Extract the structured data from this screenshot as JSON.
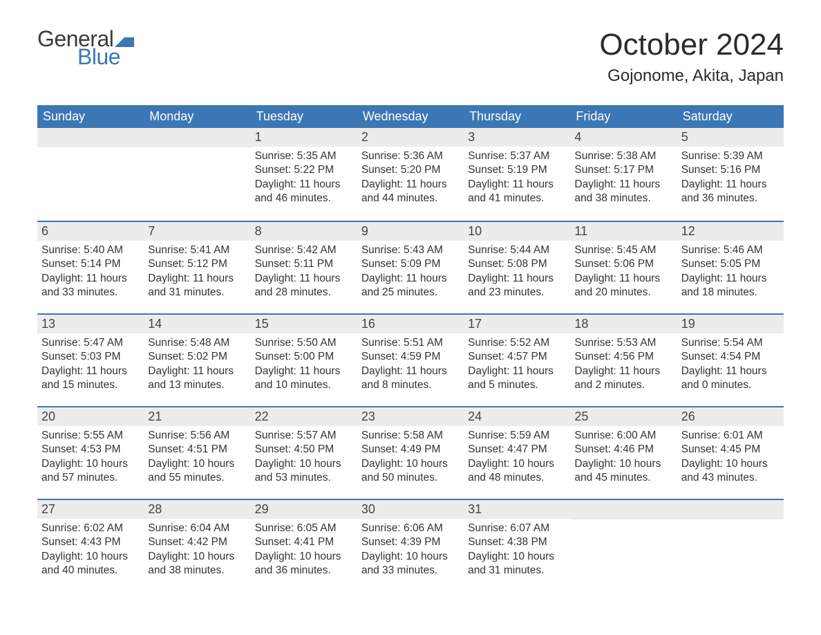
{
  "logo": {
    "text_general": "General",
    "text_blue": "Blue",
    "flag_color": "#3b77b5"
  },
  "header": {
    "month_title": "October 2024",
    "location": "Gojonome, Akita, Japan"
  },
  "styling": {
    "page_bg": "#ffffff",
    "header_bar_bg": "#3b77b5",
    "header_bar_text": "#ffffff",
    "day_num_bg": "#ececec",
    "week_border": "#3b77b5",
    "text_color": "#333333",
    "title_fontsize": 44,
    "location_fontsize": 24,
    "weekday_fontsize": 18,
    "daynum_fontsize": 18,
    "body_fontsize": 15.5
  },
  "calendar": {
    "weekdays": [
      "Sunday",
      "Monday",
      "Tuesday",
      "Wednesday",
      "Thursday",
      "Friday",
      "Saturday"
    ],
    "weeks": [
      [
        null,
        null,
        {
          "n": "1",
          "sr": "Sunrise: 5:35 AM",
          "ss": "Sunset: 5:22 PM",
          "dl": "Daylight: 11 hours and 46 minutes."
        },
        {
          "n": "2",
          "sr": "Sunrise: 5:36 AM",
          "ss": "Sunset: 5:20 PM",
          "dl": "Daylight: 11 hours and 44 minutes."
        },
        {
          "n": "3",
          "sr": "Sunrise: 5:37 AM",
          "ss": "Sunset: 5:19 PM",
          "dl": "Daylight: 11 hours and 41 minutes."
        },
        {
          "n": "4",
          "sr": "Sunrise: 5:38 AM",
          "ss": "Sunset: 5:17 PM",
          "dl": "Daylight: 11 hours and 38 minutes."
        },
        {
          "n": "5",
          "sr": "Sunrise: 5:39 AM",
          "ss": "Sunset: 5:16 PM",
          "dl": "Daylight: 11 hours and 36 minutes."
        }
      ],
      [
        {
          "n": "6",
          "sr": "Sunrise: 5:40 AM",
          "ss": "Sunset: 5:14 PM",
          "dl": "Daylight: 11 hours and 33 minutes."
        },
        {
          "n": "7",
          "sr": "Sunrise: 5:41 AM",
          "ss": "Sunset: 5:12 PM",
          "dl": "Daylight: 11 hours and 31 minutes."
        },
        {
          "n": "8",
          "sr": "Sunrise: 5:42 AM",
          "ss": "Sunset: 5:11 PM",
          "dl": "Daylight: 11 hours and 28 minutes."
        },
        {
          "n": "9",
          "sr": "Sunrise: 5:43 AM",
          "ss": "Sunset: 5:09 PM",
          "dl": "Daylight: 11 hours and 25 minutes."
        },
        {
          "n": "10",
          "sr": "Sunrise: 5:44 AM",
          "ss": "Sunset: 5:08 PM",
          "dl": "Daylight: 11 hours and 23 minutes."
        },
        {
          "n": "11",
          "sr": "Sunrise: 5:45 AM",
          "ss": "Sunset: 5:06 PM",
          "dl": "Daylight: 11 hours and 20 minutes."
        },
        {
          "n": "12",
          "sr": "Sunrise: 5:46 AM",
          "ss": "Sunset: 5:05 PM",
          "dl": "Daylight: 11 hours and 18 minutes."
        }
      ],
      [
        {
          "n": "13",
          "sr": "Sunrise: 5:47 AM",
          "ss": "Sunset: 5:03 PM",
          "dl": "Daylight: 11 hours and 15 minutes."
        },
        {
          "n": "14",
          "sr": "Sunrise: 5:48 AM",
          "ss": "Sunset: 5:02 PM",
          "dl": "Daylight: 11 hours and 13 minutes."
        },
        {
          "n": "15",
          "sr": "Sunrise: 5:50 AM",
          "ss": "Sunset: 5:00 PM",
          "dl": "Daylight: 11 hours and 10 minutes."
        },
        {
          "n": "16",
          "sr": "Sunrise: 5:51 AM",
          "ss": "Sunset: 4:59 PM",
          "dl": "Daylight: 11 hours and 8 minutes."
        },
        {
          "n": "17",
          "sr": "Sunrise: 5:52 AM",
          "ss": "Sunset: 4:57 PM",
          "dl": "Daylight: 11 hours and 5 minutes."
        },
        {
          "n": "18",
          "sr": "Sunrise: 5:53 AM",
          "ss": "Sunset: 4:56 PM",
          "dl": "Daylight: 11 hours and 2 minutes."
        },
        {
          "n": "19",
          "sr": "Sunrise: 5:54 AM",
          "ss": "Sunset: 4:54 PM",
          "dl": "Daylight: 11 hours and 0 minutes."
        }
      ],
      [
        {
          "n": "20",
          "sr": "Sunrise: 5:55 AM",
          "ss": "Sunset: 4:53 PM",
          "dl": "Daylight: 10 hours and 57 minutes."
        },
        {
          "n": "21",
          "sr": "Sunrise: 5:56 AM",
          "ss": "Sunset: 4:51 PM",
          "dl": "Daylight: 10 hours and 55 minutes."
        },
        {
          "n": "22",
          "sr": "Sunrise: 5:57 AM",
          "ss": "Sunset: 4:50 PM",
          "dl": "Daylight: 10 hours and 53 minutes."
        },
        {
          "n": "23",
          "sr": "Sunrise: 5:58 AM",
          "ss": "Sunset: 4:49 PM",
          "dl": "Daylight: 10 hours and 50 minutes."
        },
        {
          "n": "24",
          "sr": "Sunrise: 5:59 AM",
          "ss": "Sunset: 4:47 PM",
          "dl": "Daylight: 10 hours and 48 minutes."
        },
        {
          "n": "25",
          "sr": "Sunrise: 6:00 AM",
          "ss": "Sunset: 4:46 PM",
          "dl": "Daylight: 10 hours and 45 minutes."
        },
        {
          "n": "26",
          "sr": "Sunrise: 6:01 AM",
          "ss": "Sunset: 4:45 PM",
          "dl": "Daylight: 10 hours and 43 minutes."
        }
      ],
      [
        {
          "n": "27",
          "sr": "Sunrise: 6:02 AM",
          "ss": "Sunset: 4:43 PM",
          "dl": "Daylight: 10 hours and 40 minutes."
        },
        {
          "n": "28",
          "sr": "Sunrise: 6:04 AM",
          "ss": "Sunset: 4:42 PM",
          "dl": "Daylight: 10 hours and 38 minutes."
        },
        {
          "n": "29",
          "sr": "Sunrise: 6:05 AM",
          "ss": "Sunset: 4:41 PM",
          "dl": "Daylight: 10 hours and 36 minutes."
        },
        {
          "n": "30",
          "sr": "Sunrise: 6:06 AM",
          "ss": "Sunset: 4:39 PM",
          "dl": "Daylight: 10 hours and 33 minutes."
        },
        {
          "n": "31",
          "sr": "Sunrise: 6:07 AM",
          "ss": "Sunset: 4:38 PM",
          "dl": "Daylight: 10 hours and 31 minutes."
        },
        null,
        null
      ]
    ]
  }
}
